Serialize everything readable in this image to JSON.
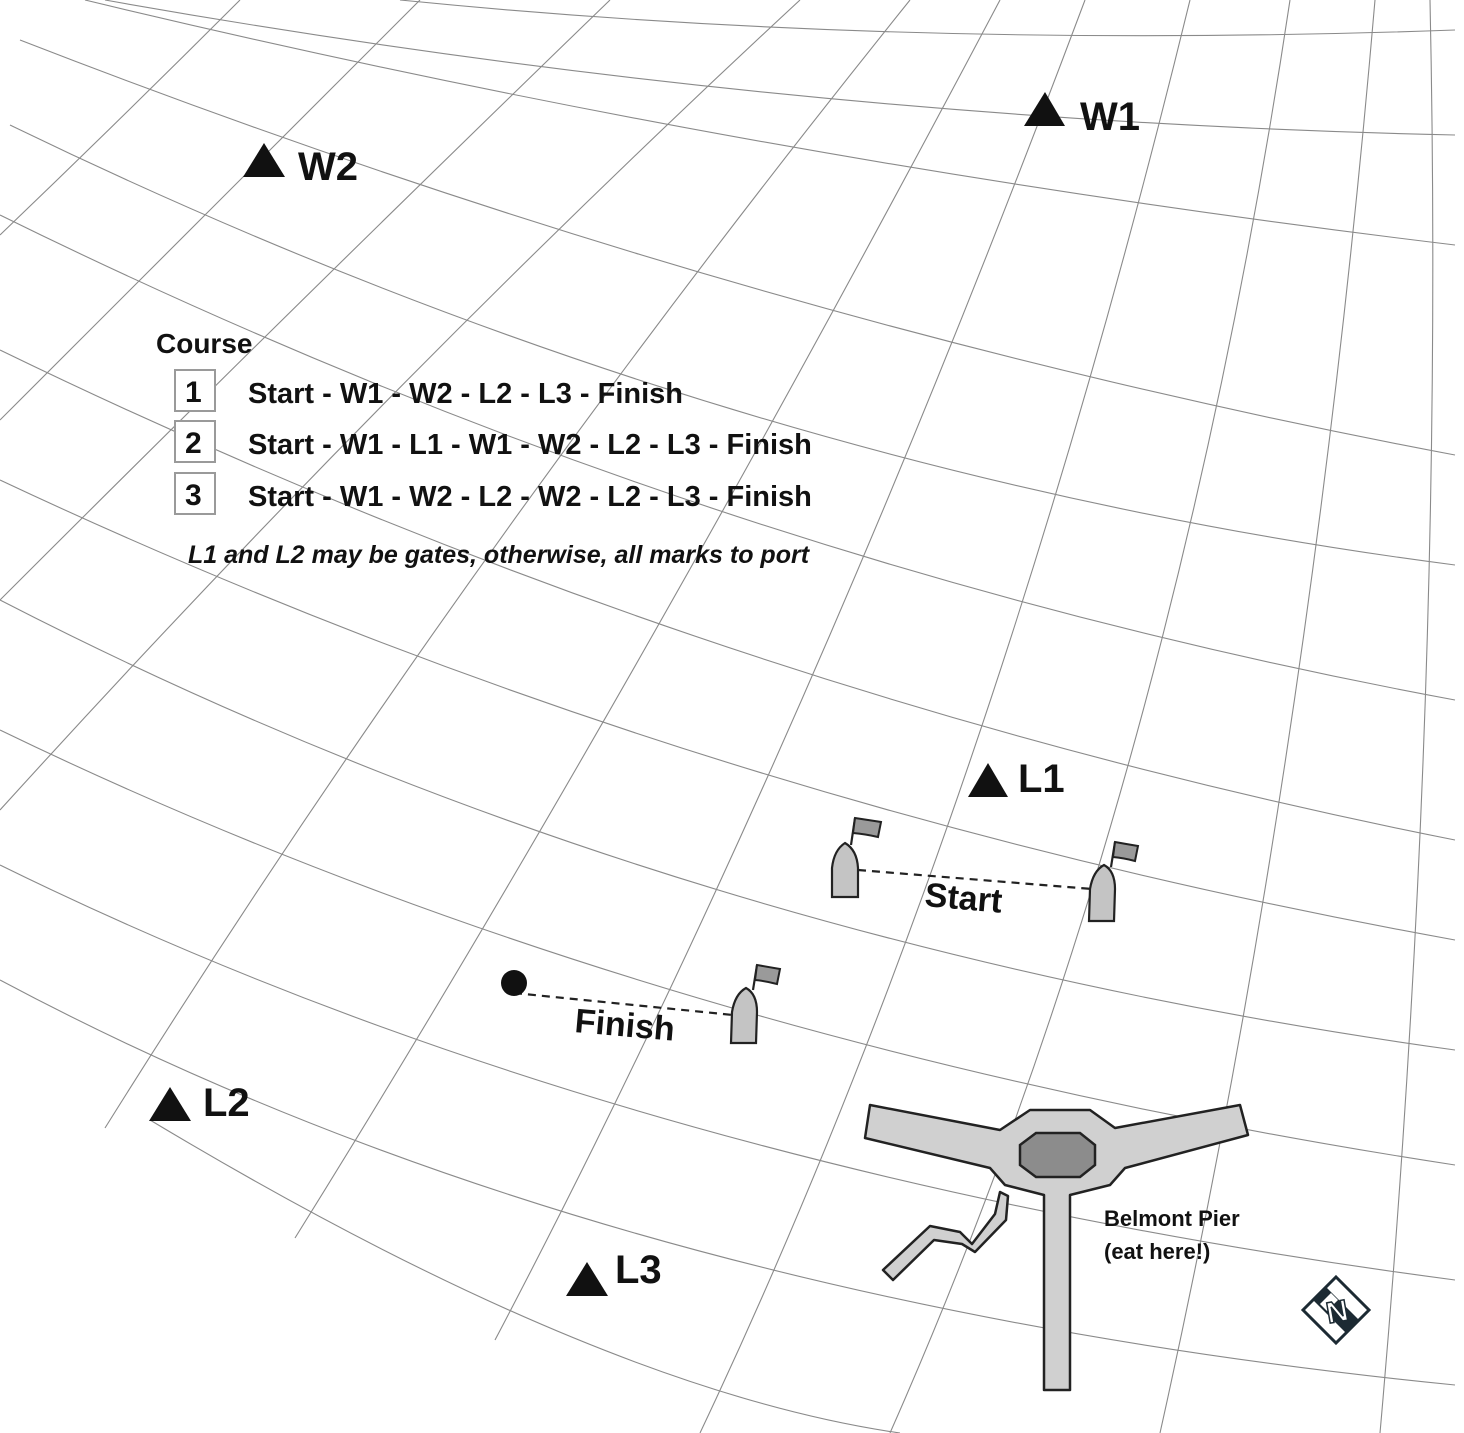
{
  "course": {
    "title": "Course",
    "options": [
      {
        "number": "1",
        "route": "Start - W1 - W2 - L2 - L3 - Finish"
      },
      {
        "number": "2",
        "route": "Start - W1 - L1 - W1 - W2 - L2 - L3 - Finish"
      },
      {
        "number": "3",
        "route": "Start - W1 - W2 - L2 - W2 - L2 - L3 - Finish"
      }
    ],
    "note": "L1 and L2 may be gates, otherwise, all marks to port"
  },
  "marks": {
    "w1": "W1",
    "w2": "W2",
    "l1": "L1",
    "l2": "L2",
    "l3": "L3"
  },
  "lines": {
    "start": "Start",
    "finish": "Finish"
  },
  "pier": {
    "name": "Belmont Pier",
    "note": "(eat here!)"
  },
  "compass": {
    "label": "N",
    "icon": "north-compass-icon"
  },
  "colors": {
    "grid": "#8a8a8a",
    "mark": "#111111",
    "boat": "#c4c4c4",
    "pier": "#d0d0d0"
  }
}
